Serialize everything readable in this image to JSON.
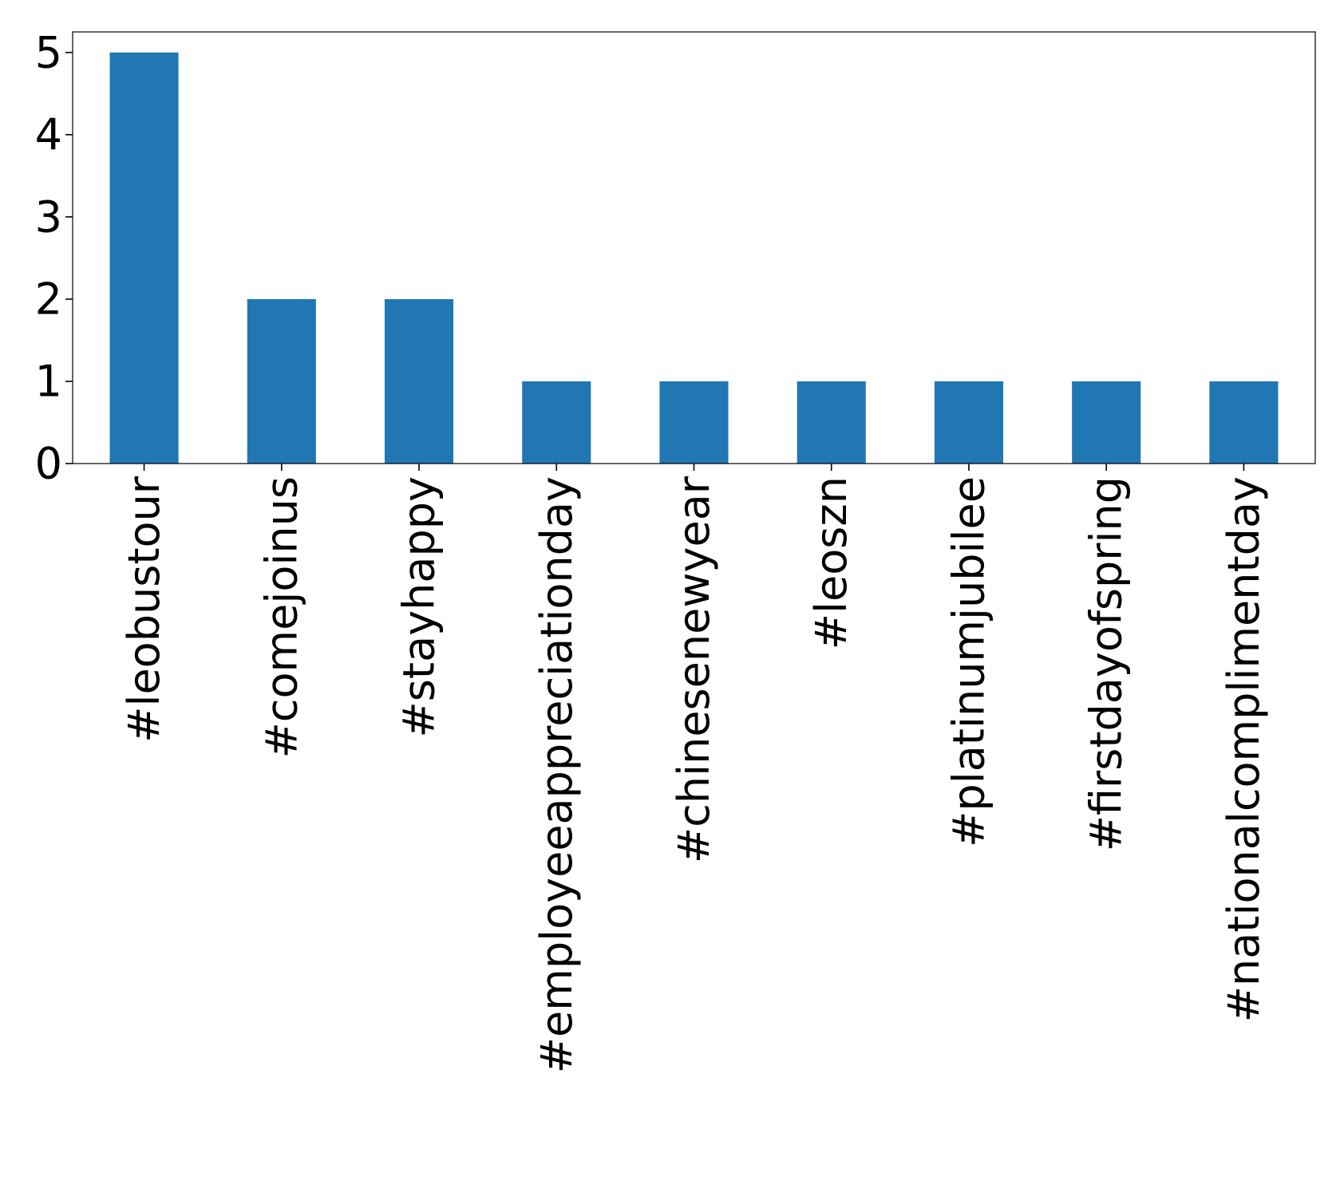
{
  "chart_data": {
    "type": "bar",
    "title": "",
    "xlabel": "",
    "ylabel": "",
    "categories": [
      "#leobustour",
      "#comejoinus",
      "#stayhappy",
      "#employeeappreciationday",
      "#chinesenewyear",
      "#leoszn",
      "#platinumjubilee",
      "#firstdayofspring",
      "#nationalcomplimentday"
    ],
    "values": [
      5,
      2,
      2,
      1,
      1,
      1,
      1,
      1,
      1
    ],
    "ylim": [
      0,
      5.25
    ],
    "yticks": [
      0,
      1,
      2,
      3,
      4,
      5
    ],
    "grid": false,
    "legend": "none",
    "bar_color": "#2077b4"
  }
}
